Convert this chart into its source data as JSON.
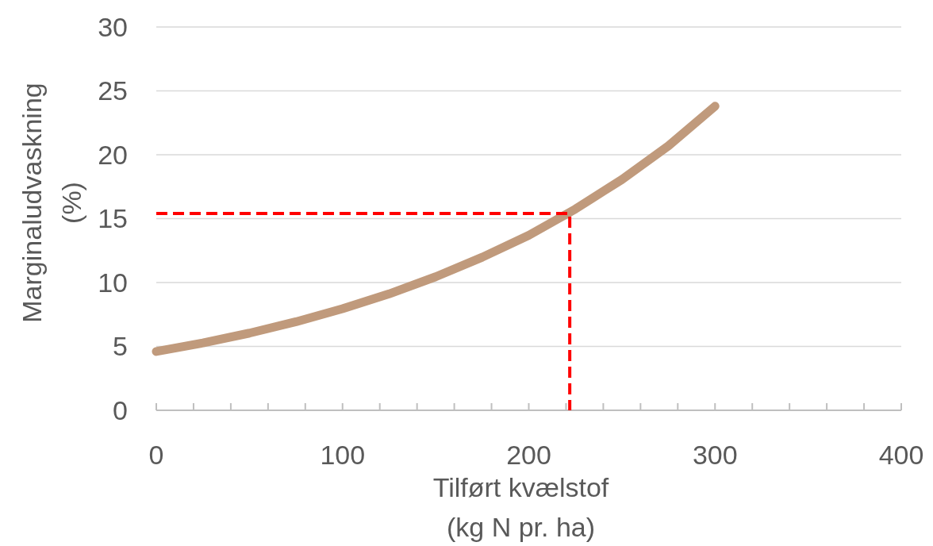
{
  "chart_data": {
    "type": "line",
    "xlabel": "Tilført kvælstof\n(kg N pr. ha)",
    "ylabel": "Marginaludvaskning\n(%)",
    "xlim": [
      0,
      400
    ],
    "ylim": [
      0,
      30
    ],
    "xticks": [
      0,
      {
        "value": 20,
        "label": null
      },
      {
        "value": 40,
        "label": null
      },
      {
        "value": 60,
        "label": null
      },
      {
        "value": 80,
        "label": null
      },
      100,
      {
        "value": 120,
        "label": null
      },
      {
        "value": 140,
        "label": null
      },
      {
        "value": 160,
        "label": null
      },
      {
        "value": 180,
        "label": null
      },
      200,
      {
        "value": 220,
        "label": null
      },
      {
        "value": 240,
        "label": null
      },
      {
        "value": 260,
        "label": null
      },
      {
        "value": 280,
        "label": null
      },
      300,
      {
        "value": 320,
        "label": null
      },
      {
        "value": 340,
        "label": null
      },
      {
        "value": 360,
        "label": null
      },
      {
        "value": 380,
        "label": null
      },
      400
    ],
    "yticks": [
      0,
      5,
      10,
      15,
      20,
      25,
      30
    ],
    "grid": "y",
    "marker": "none",
    "series": [
      {
        "color": "#c09a7c",
        "x": [
          0,
          25,
          50,
          75,
          100,
          125,
          150,
          175,
          200,
          225,
          250,
          275,
          300
        ],
        "values": [
          4.6,
          5.27,
          6.04,
          6.93,
          7.95,
          9.11,
          10.45,
          11.98,
          13.7,
          15.75,
          18.06,
          20.7,
          23.8
        ],
        "line_style": "solid"
      },
      {
        "color": "#ff0000",
        "x": [
          0,
          222,
          222
        ],
        "values": [
          15.4,
          15.4,
          0
        ],
        "line_style": "dashed"
      }
    ]
  }
}
